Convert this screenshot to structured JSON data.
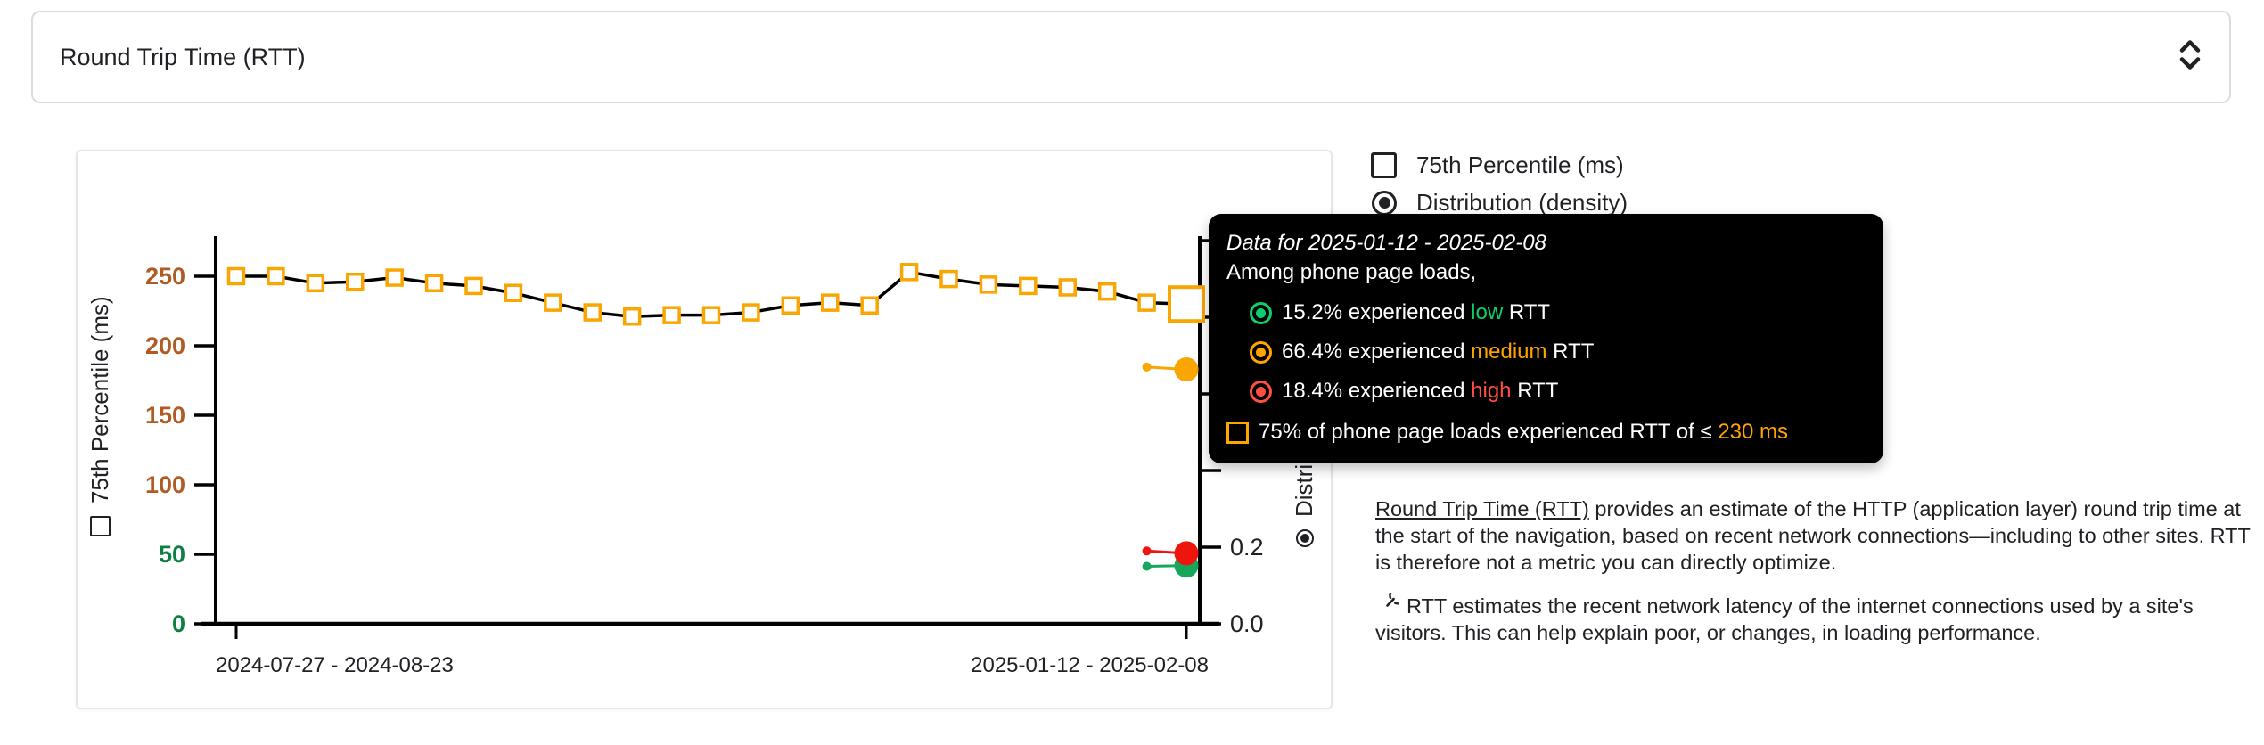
{
  "metric_selector": {
    "label": "Round Trip Time (RTT)"
  },
  "legend": {
    "percentile": "75th Percentile (ms)",
    "distribution": "Distribution (density)"
  },
  "tooltip": {
    "title": "Data for 2025-01-12 - 2025-02-08",
    "subtitle": "Among phone page loads,",
    "rows": [
      {
        "pct": "15.2%",
        "mid": "experienced",
        "level": "low",
        "suffix": "RTT",
        "color": "#0cce6b"
      },
      {
        "pct": "66.4%",
        "mid": "experienced",
        "level": "medium",
        "suffix": "RTT",
        "color": "#ffa400"
      },
      {
        "pct": "18.4%",
        "mid": "experienced",
        "level": "high",
        "suffix": "RTT",
        "color": "#ff4e42"
      }
    ],
    "threshold": {
      "prefix": "75% of phone page loads experienced RTT of ≤",
      "value": "230 ms",
      "color": "#ffa400"
    }
  },
  "description": {
    "link_text": "Round Trip Time (RTT)",
    "p1_rest": " provides an estimate of the HTTP (application layer) round trip time at the start of the navigation, based on recent network connections—including to other sites. RTT is therefore not a metric you can directly optimize.",
    "p2": "RTT estimates the recent network latency of the internet connections used by a site's visitors. This can help explain poor, or changes, in loading performance."
  },
  "chart_data": {
    "type": "line",
    "ylabel_left": "75th Percentile (ms)",
    "ylabel_right": "Distribution (density)",
    "x_tick_labels": [
      "2024-07-27 - 2024-08-23",
      "2025-01-12 - 2025-02-08"
    ],
    "y_left": {
      "ticks": [
        0,
        50,
        100,
        150,
        200,
        250
      ],
      "ylim": [
        0,
        275
      ],
      "low_tick_color": "#0b8043",
      "mid_tick_color": "#b15a24",
      "green_up_to": 50
    },
    "y_right": {
      "ticks": [
        0,
        0.2,
        0.4,
        0.6,
        0.8,
        1.0
      ],
      "visible_labels": [
        "0.0",
        "0.2"
      ],
      "ylim": [
        0,
        1.0
      ]
    },
    "series": [
      {
        "name": "75th Percentile (ms)",
        "marker": "square",
        "marker_color": "#f9a602",
        "line_color": "#000000",
        "selected_index": 24,
        "values": [
          250,
          250,
          245,
          246,
          249,
          245,
          243,
          238,
          231,
          224,
          221,
          222,
          222,
          224,
          229,
          231,
          229,
          253,
          248,
          244,
          243,
          242,
          239,
          231,
          230
        ]
      }
    ],
    "density_points": [
      {
        "name": "medium",
        "color": "#f9a602",
        "prev": 0.67,
        "last": 0.664
      },
      {
        "name": "low",
        "color": "#16a75c",
        "prev": 0.15,
        "last": 0.152
      },
      {
        "name": "high",
        "color": "#ed150d",
        "prev": 0.19,
        "last": 0.184
      }
    ]
  }
}
